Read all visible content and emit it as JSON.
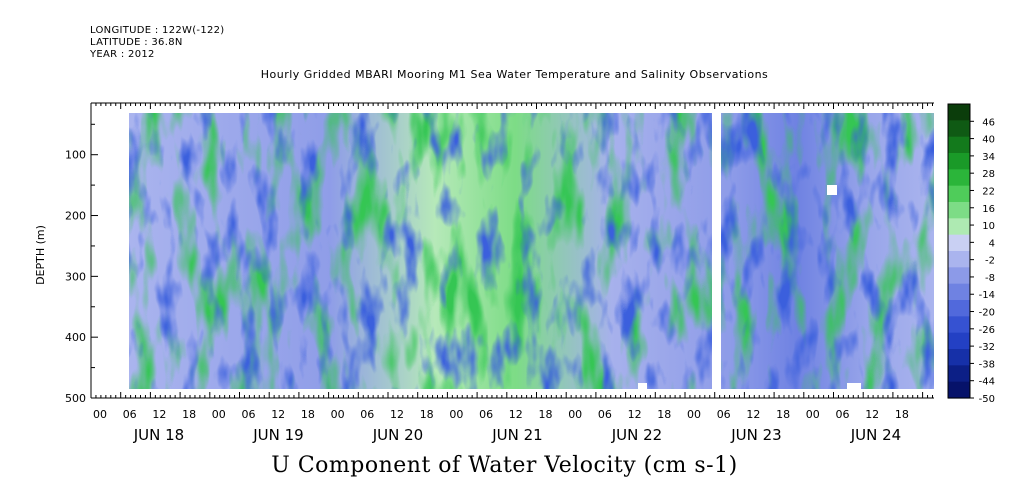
{
  "header": {
    "longitude": "LONGITUDE : 122W(-122)",
    "latitude": "LATITUDE : 36.8N",
    "year": "YEAR : 2012"
  },
  "chart_data": {
    "type": "heatmap",
    "title": "Hourly Gridded MBARI Mooring M1 Sea Water Temperature and Salinity Observations",
    "xlabel": "U Component of Water Velocity (cm s-1)",
    "ylabel": "DEPTH (m)",
    "y_ticks": [
      100,
      200,
      300,
      400,
      500
    ],
    "ylim": [
      500,
      15
    ],
    "x_hour_ticks": [
      "00",
      "06",
      "12",
      "18",
      "00",
      "06",
      "12",
      "18",
      "00",
      "06",
      "12",
      "18",
      "00",
      "06",
      "12",
      "18",
      "00",
      "06",
      "12",
      "18",
      "00",
      "06",
      "12",
      "18",
      "00",
      "06",
      "12",
      "18"
    ],
    "x_day_labels": [
      "JUN 18",
      "JUN 19",
      "JUN 20",
      "JUN 21",
      "JUN 22",
      "JUN 23",
      "JUN 24"
    ],
    "colorbar": {
      "levels": [
        46,
        40,
        34,
        28,
        22,
        16,
        10,
        4,
        -2,
        -8,
        -14,
        -20,
        -26,
        -32,
        -38,
        -44,
        -50
      ],
      "range": [
        -50,
        52
      ],
      "colors_high": "#0a4a10",
      "colors_low": "#0a0a60",
      "palette": [
        "#0b3d0b",
        "#0f5a14",
        "#137a1c",
        "#1a9a28",
        "#2bb53a",
        "#4fcc5a",
        "#7ddc86",
        "#aeeab2",
        "#c9d0f3",
        "#aab4ee",
        "#8c9ae8",
        "#6f82e2",
        "#5169dc",
        "#3652d2",
        "#2340c4",
        "#1630a8",
        "#0c1f86",
        "#06126a"
      ]
    },
    "data_gap": "late JUN 22",
    "grid": false,
    "legend": "right colorbar"
  }
}
